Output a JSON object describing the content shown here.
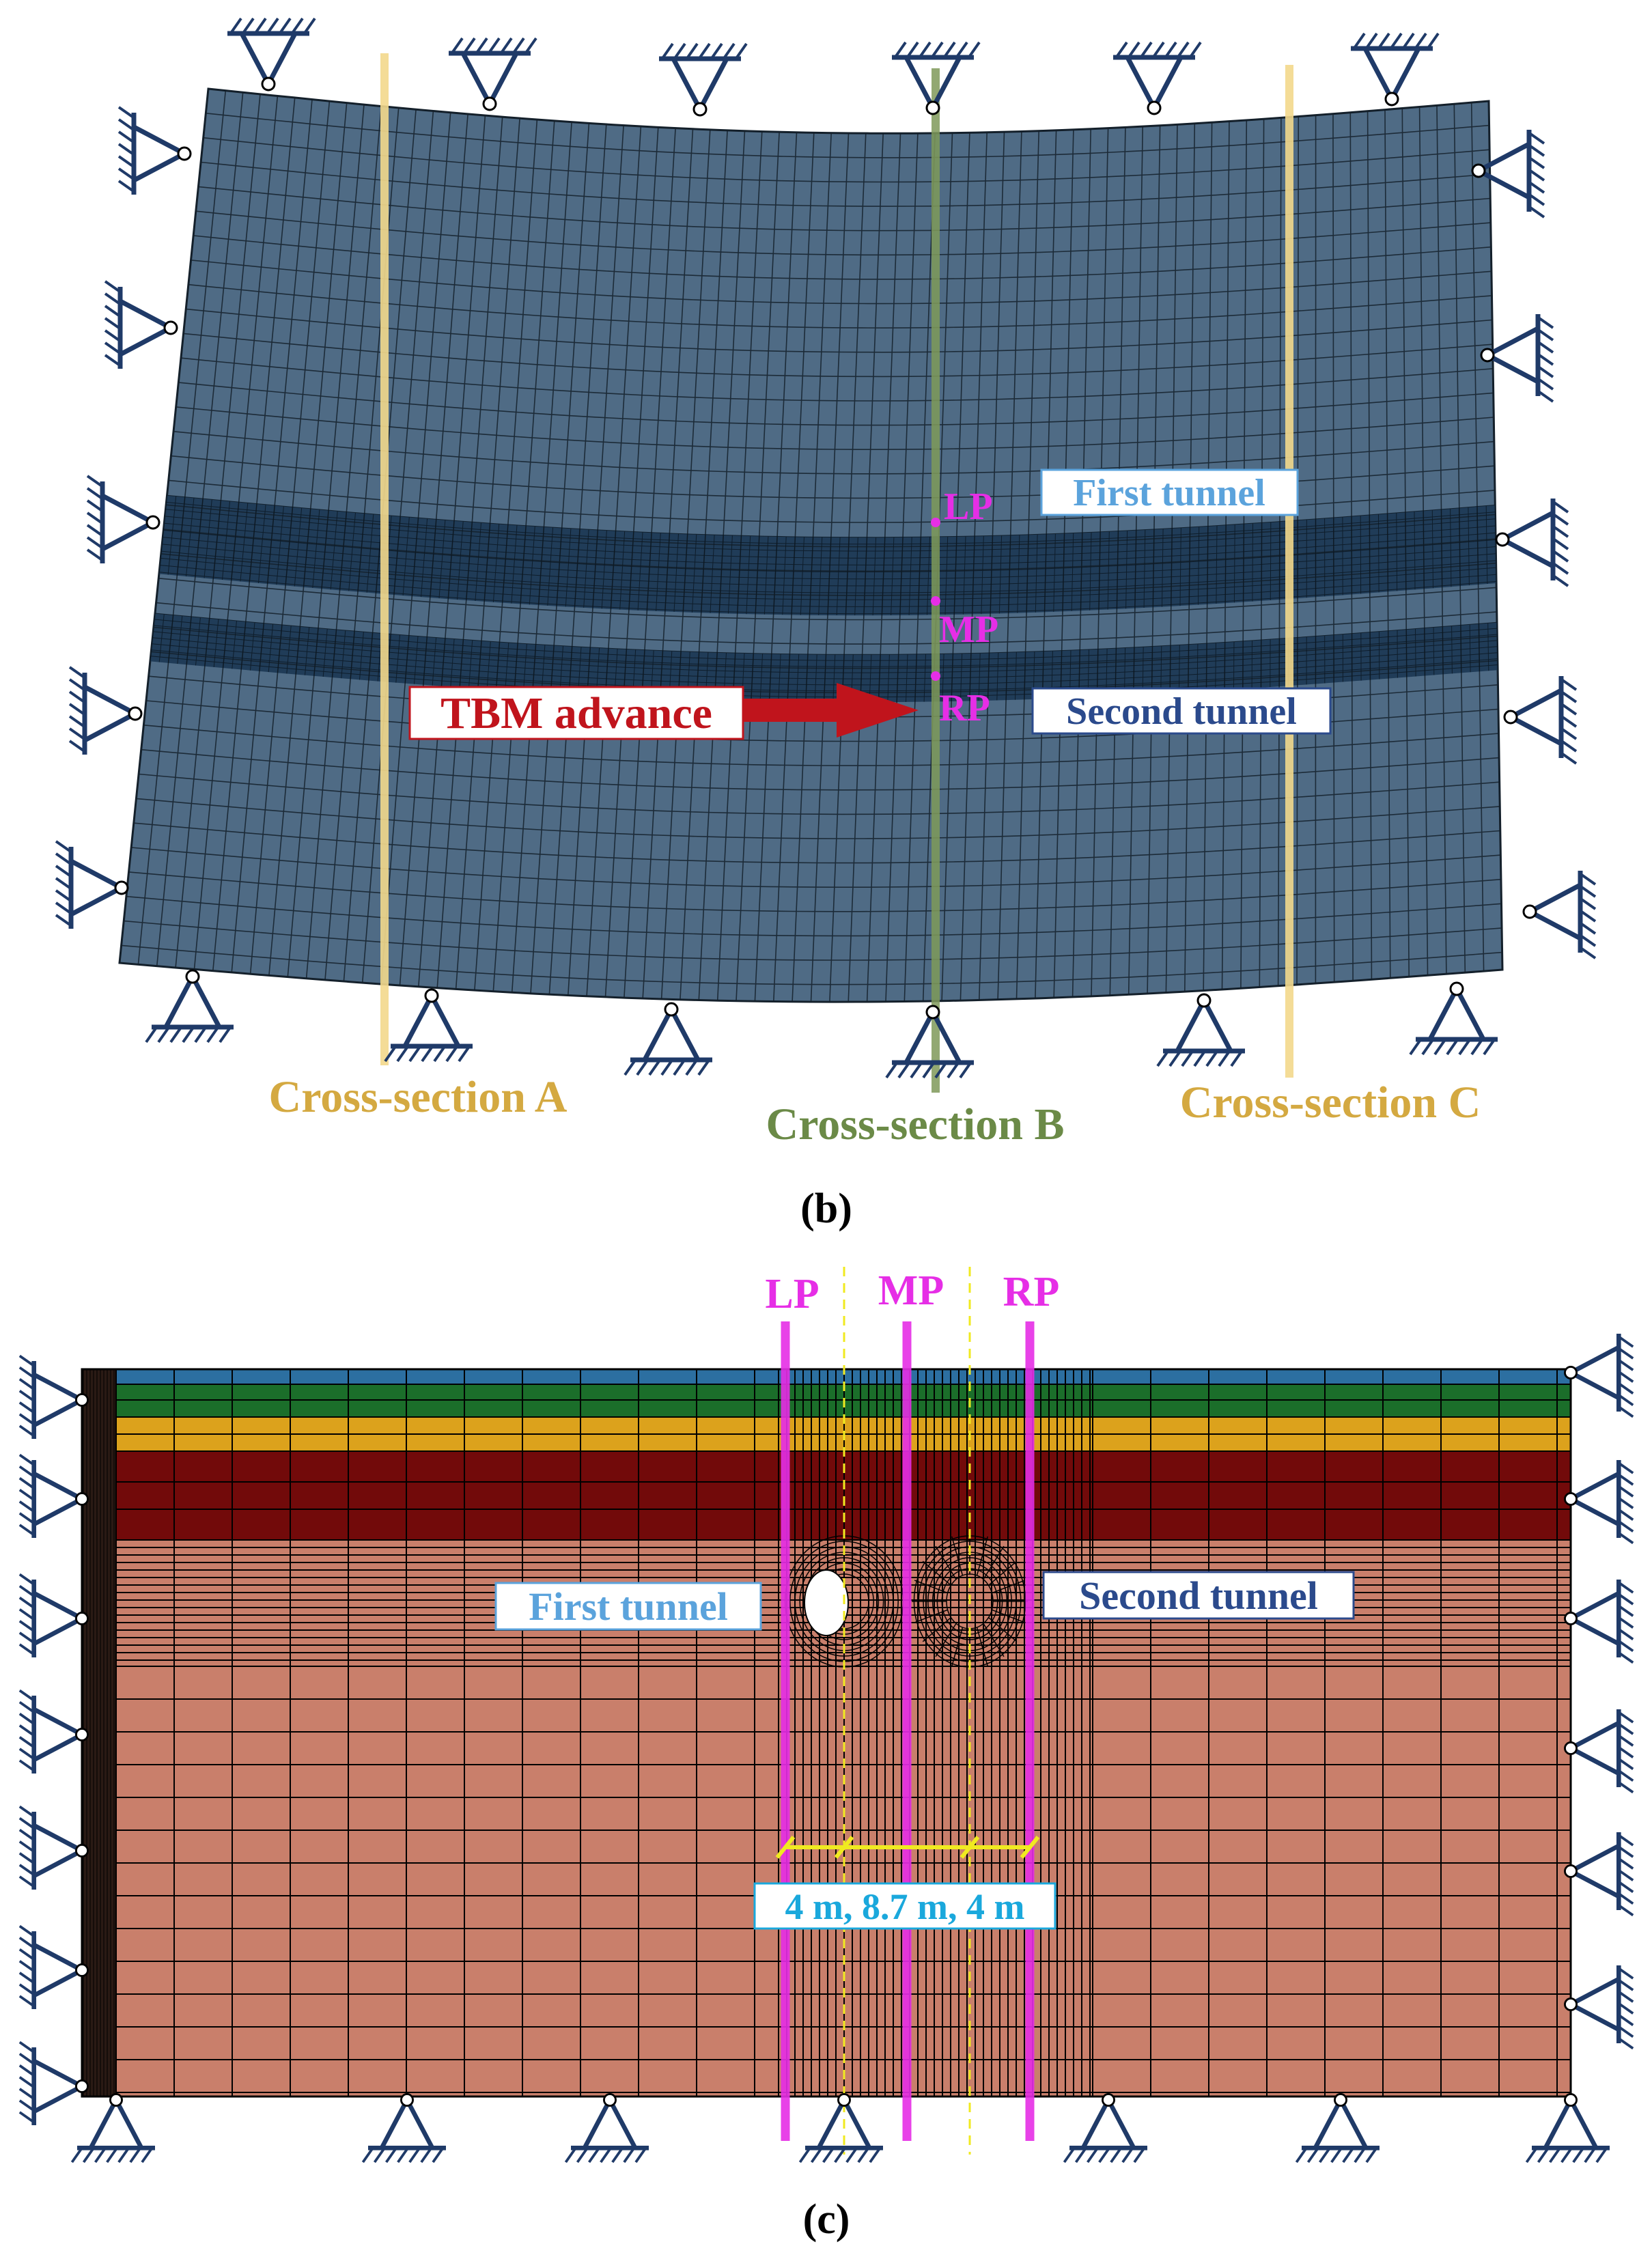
{
  "panel_b": {
    "caption": "b",
    "labels": {
      "lp": "LP",
      "mp": "MP",
      "rp": "RP",
      "first_tunnel": "First tunnel",
      "second_tunnel": "Second tunnel",
      "tbm_advance": "TBM advance",
      "cross_section_a": "Cross-section A",
      "cross_section_b": "Cross-section B",
      "cross_section_c": "Cross-section C"
    }
  },
  "panel_c": {
    "caption": "c",
    "labels": {
      "lp": "LP",
      "mp": "MP",
      "rp": "RP",
      "first_tunnel": "First tunnel",
      "second_tunnel": "Second tunnel",
      "spacing": "4 m, 8.7 m, 4 m"
    }
  },
  "colors": {
    "mesh_fill": "#4f6b85",
    "tunnel_band": "#1e3a55",
    "mesh_line": "#14202b",
    "support": "#1f3a68",
    "cross_section_ac": "#f3d98c",
    "cross_section_b": "#7f9a5a",
    "cross_section_ac_text": "#d4a941",
    "cross_section_b_text": "#6b8a47",
    "magenta": "#e62ee6",
    "tbm_red": "#c0141c",
    "first_tunnel_text": "#5ba3dc",
    "second_tunnel_text": "#2b4a8c",
    "layer_blue": "#2c6fa1",
    "layer_green": "#1b6e2a",
    "layer_orange": "#dca21c",
    "layer_maroon": "#720a0a",
    "layer_soil": "#c97f6b",
    "spacing_yellow": "#f0ea20",
    "spacing_text": "#1aa8dc"
  }
}
